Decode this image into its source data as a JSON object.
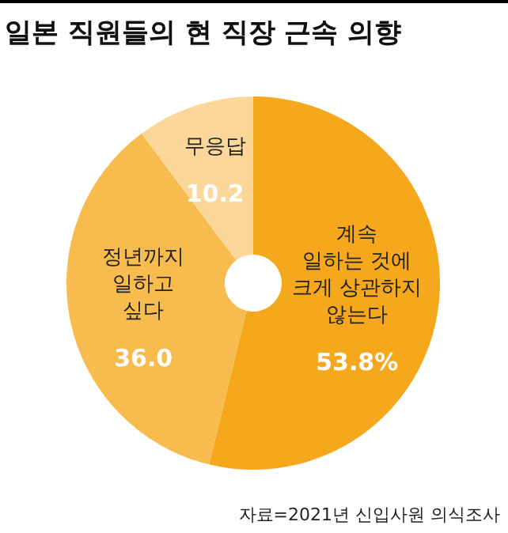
{
  "chart_data": {
    "type": "donut",
    "title": "일본 직원들의 현 직장 근속 의향",
    "categories": [
      "계속\n일하는 것에\n크게 상관하지\n않는다",
      "정년까지\n일하고\n싶다",
      "무응답"
    ],
    "values": [
      53.8,
      36.0,
      10.2
    ],
    "colors": [
      "#f5a81c",
      "#f8bb4d",
      "#fbd89a"
    ],
    "value_labels": [
      "53.8%",
      "36.0",
      "10.2"
    ],
    "annotations": [
      "자료=2021년 신입사원 의식조사"
    ]
  }
}
